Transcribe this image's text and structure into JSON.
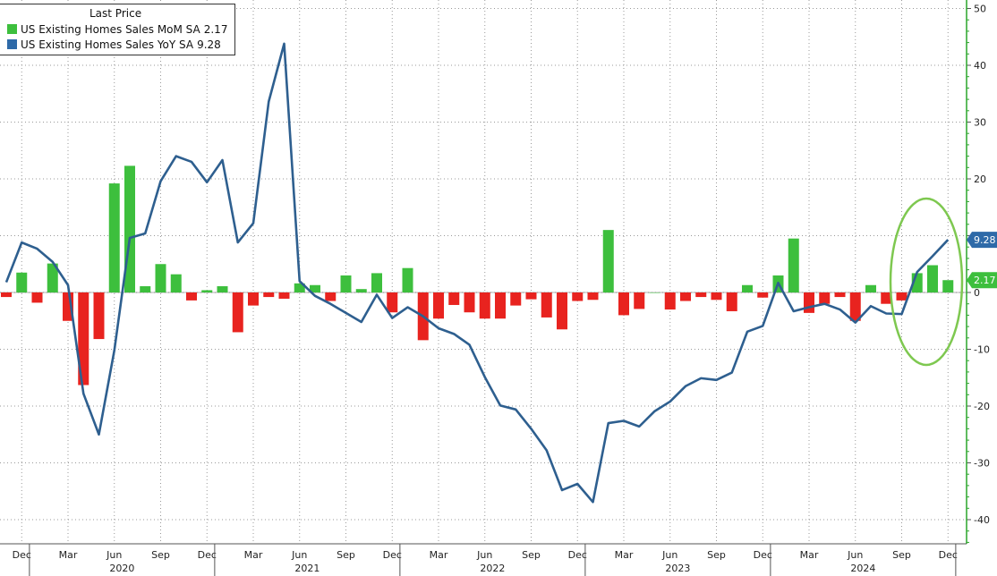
{
  "legend": {
    "title": "Last Price",
    "items": [
      {
        "label": "US Existing Homes Sales MoM SA",
        "value": "2.17"
      },
      {
        "label": "US Existing Homes Sales YoY SA",
        "value": "9.28"
      }
    ]
  },
  "colors": {
    "positive_bar": "#3dbf3d",
    "negative_bar": "#e8231f",
    "line": "#2e5f8f",
    "highlight_ellipse": "#7ec850",
    "line_badge": "#2e6aa8",
    "bar_badge": "#3dbf3d",
    "grid": "#999999"
  },
  "chart_data": {
    "type": "bar+line",
    "x_start": "2019-11",
    "x_end": "2024-12",
    "month_ticks": [
      "Dec",
      "Mar",
      "Jun",
      "Sep",
      "Dec",
      "Mar",
      "Jun",
      "Sep",
      "Dec",
      "Mar",
      "Jun",
      "Sep",
      "Dec",
      "Mar",
      "Jun",
      "Sep",
      "Dec",
      "Mar",
      "Jun",
      "Sep",
      "Dec"
    ],
    "year_labels": [
      "2020",
      "2021",
      "2022",
      "2023",
      "2024"
    ],
    "y_axis": {
      "side": "right",
      "range": [
        -44,
        50
      ],
      "ticks": [
        50,
        40,
        30,
        20,
        10,
        0,
        -10,
        -20,
        -30,
        -40
      ]
    },
    "grid": true,
    "legend_position": "top-left",
    "series": [
      {
        "name": "US Existing Homes Sales MoM SA",
        "type": "bar",
        "last_value": "2.17",
        "x": [
          "2019-11",
          "2019-12",
          "2020-01",
          "2020-02",
          "2020-03",
          "2020-04",
          "2020-05",
          "2020-06",
          "2020-07",
          "2020-08",
          "2020-09",
          "2020-10",
          "2020-11",
          "2020-12",
          "2021-01",
          "2021-02",
          "2021-03",
          "2021-04",
          "2021-05",
          "2021-06",
          "2021-07",
          "2021-08",
          "2021-09",
          "2021-10",
          "2021-11",
          "2021-12",
          "2022-01",
          "2022-02",
          "2022-03",
          "2022-04",
          "2022-05",
          "2022-06",
          "2022-07",
          "2022-08",
          "2022-09",
          "2022-10",
          "2022-11",
          "2022-12",
          "2023-01",
          "2023-02",
          "2023-03",
          "2023-04",
          "2023-05",
          "2023-06",
          "2023-07",
          "2023-08",
          "2023-09",
          "2023-10",
          "2023-11",
          "2023-12",
          "2024-01",
          "2024-02",
          "2024-03",
          "2024-04",
          "2024-05",
          "2024-06",
          "2024-07",
          "2024-08",
          "2024-09",
          "2024-10",
          "2024-11",
          "2024-12"
        ],
        "values": [
          -0.8,
          3.5,
          -1.8,
          5.1,
          -5.0,
          -16.3,
          -8.2,
          19.2,
          22.3,
          1.1,
          5.0,
          3.2,
          -1.4,
          0.4,
          1.1,
          -7.0,
          -2.3,
          -0.8,
          -1.1,
          1.6,
          1.3,
          -1.5,
          3.0,
          0.6,
          3.4,
          -3.5,
          4.3,
          -8.4,
          -4.6,
          -2.2,
          -3.5,
          -4.6,
          -4.6,
          -2.3,
          -1.2,
          -4.4,
          -6.5,
          -1.5,
          -1.3,
          11.0,
          -4.0,
          -2.9,
          0.0,
          -3.0,
          -1.5,
          -0.8,
          -1.3,
          -3.3,
          1.3,
          -0.9,
          3.0,
          9.5,
          -3.6,
          -2.0,
          -0.8,
          -5.0,
          1.3,
          -2.0,
          -1.4,
          3.4,
          4.8,
          2.17
        ]
      },
      {
        "name": "US Existing Homes Sales YoY SA",
        "type": "line",
        "last_value": "9.28",
        "x": [
          "2019-11",
          "2019-12",
          "2020-01",
          "2020-02",
          "2020-03",
          "2020-04",
          "2020-05",
          "2020-06",
          "2020-07",
          "2020-08",
          "2020-09",
          "2020-10",
          "2020-11",
          "2020-12",
          "2021-01",
          "2021-02",
          "2021-03",
          "2021-04",
          "2021-05",
          "2021-06",
          "2021-07",
          "2021-08",
          "2021-09",
          "2021-10",
          "2021-11",
          "2021-12",
          "2022-01",
          "2022-02",
          "2022-03",
          "2022-04",
          "2022-05",
          "2022-06",
          "2022-07",
          "2022-08",
          "2022-09",
          "2022-10",
          "2022-11",
          "2022-12",
          "2023-01",
          "2023-02",
          "2023-03",
          "2023-04",
          "2023-05",
          "2023-06",
          "2023-07",
          "2023-08",
          "2023-09",
          "2023-10",
          "2023-11",
          "2023-12",
          "2024-01",
          "2024-02",
          "2024-03",
          "2024-04",
          "2024-05",
          "2024-06",
          "2024-07",
          "2024-08",
          "2024-09",
          "2024-10",
          "2024-11",
          "2024-12"
        ],
        "values": [
          1.8,
          8.8,
          7.7,
          5.4,
          1.3,
          -17.8,
          -25.0,
          -10.2,
          9.6,
          10.4,
          19.6,
          24.0,
          23.0,
          19.4,
          23.3,
          8.8,
          12.2,
          33.6,
          43.8,
          2.0,
          -0.6,
          -2.0,
          -3.6,
          -5.2,
          -0.4,
          -4.5,
          -2.6,
          -4.2,
          -6.3,
          -7.3,
          -9.2,
          -14.9,
          -19.9,
          -20.6,
          -24.0,
          -27.8,
          -34.8,
          -33.7,
          -36.9,
          -23.0,
          -22.6,
          -23.6,
          -20.9,
          -19.2,
          -16.5,
          -15.1,
          -15.4,
          -14.1,
          -6.9,
          -5.9,
          1.7,
          -3.3,
          -2.6,
          -2.0,
          -3.0,
          -5.3,
          -2.4,
          -3.7,
          -3.8,
          3.6,
          6.4,
          9.28
        ]
      }
    ],
    "annotation": "ellipse highlighting last three months"
  }
}
